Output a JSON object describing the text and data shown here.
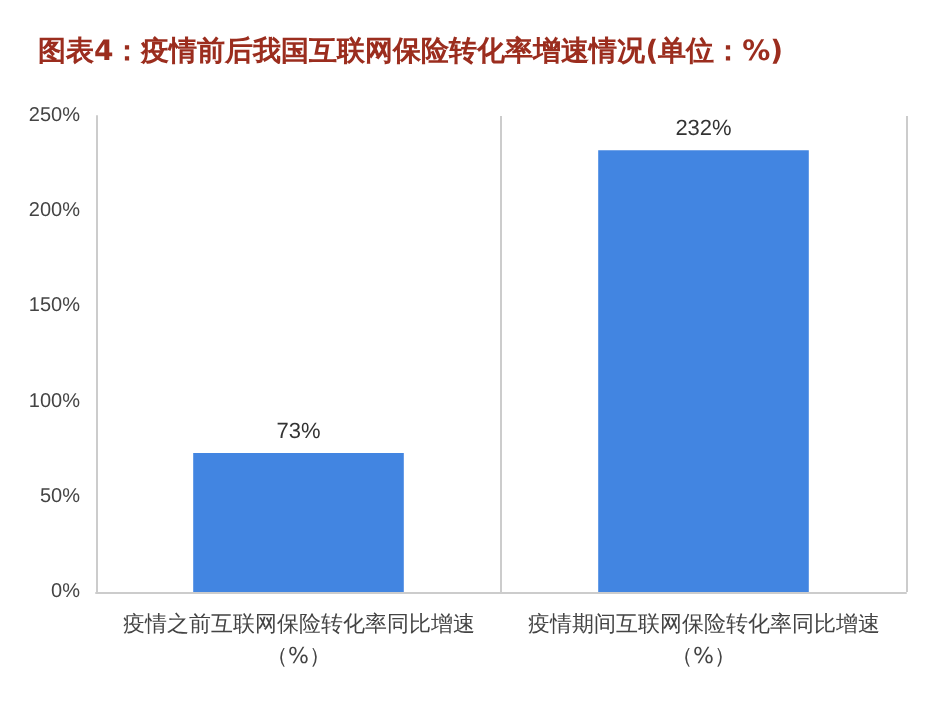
{
  "chart_data": {
    "type": "bar",
    "title": "图表4：疫情前后我国互联网保险转化率增速情况(单位：%)",
    "categories": [
      "疫情之前互联网保险转化率同比增速（%）",
      "疫情期间互联网保险转化率同比增速（%）"
    ],
    "values": [
      73,
      232
    ],
    "color": "#4285e1",
    "value_labels": [
      "73%",
      "232%"
    ],
    "ylim": [
      0,
      250
    ],
    "yticks": [
      {
        "value": 0,
        "label": "0%"
      },
      {
        "value": 50,
        "label": "50%"
      },
      {
        "value": 100,
        "label": "100%"
      },
      {
        "value": 150,
        "label": "150%"
      },
      {
        "value": 200,
        "label": "200%"
      },
      {
        "value": 250,
        "label": "250%"
      }
    ],
    "grid": "x"
  }
}
